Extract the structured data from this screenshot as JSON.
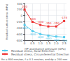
{
  "chart_data": {
    "type": "line",
    "xlabel": "HP assistance pressure (GPa)",
    "ylabel": "Residual surface stress (MPa)",
    "x": [
      0.0,
      0.5,
      1.0,
      1.5,
      2.0,
      2.5
    ],
    "series": [
      {
        "name": "Residual stress, Axial Direction",
        "color": "#55ccee",
        "values": [
          -300,
          -500,
          -600,
          -650,
          -680,
          -700
        ]
      },
      {
        "name": "Residual stress, Circumferential Direction",
        "color": "#ee3333",
        "values": [
          200,
          -200,
          -300,
          -350,
          -350,
          -175
        ]
      }
    ],
    "xlim": [
      -0.05,
      2.65
    ],
    "xticks": [
      0,
      0.5,
      {
        "value": 1,
        "label": "1.0"
      },
      1.5,
      {
        "value": 2,
        "label": "2.0"
      },
      2.5
    ],
    "ylim": [
      -800,
      400
    ],
    "yticks": [
      -800,
      -600,
      -400,
      -200,
      0,
      200,
      400
    ],
    "grid": true,
    "legend": "lower left",
    "data_labels": true,
    "marker": "square",
    "footnote": "Rn = 800 mm/rev, f = 0.1 mm/rev, and dp = 200 mm"
  }
}
